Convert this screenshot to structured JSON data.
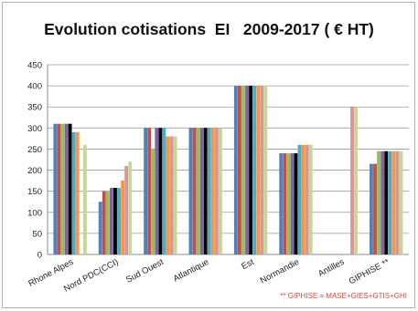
{
  "chart_data": {
    "type": "bar",
    "title": "Evolution cotisations  EI   2009-2017 ( € HT)",
    "footnote": "** GIPHISE = MASE+GIES+GTIS+GHI",
    "xlabel": "",
    "ylabel": "",
    "ylim": [
      0,
      450
    ],
    "ytick_labels": [
      "0",
      "50",
      "100",
      "150",
      "200",
      "250",
      "300",
      "350",
      "400",
      "450"
    ],
    "grid": true,
    "legend": "none",
    "categories": [
      "Rhone Alpes",
      "Nord PDC(CCI)",
      "Sud Ouest",
      "Atlantique",
      "Est",
      "Normandie",
      "Antilles",
      "GIPHISE **"
    ],
    "series_colors": [
      "#4f81bd",
      "#c0504d",
      "#9bbb59",
      "#8064a2",
      "#000000",
      "#4bacc6",
      "#f79646",
      "#d99694",
      "#c3d69b"
    ],
    "values_by_category": [
      [
        310,
        310,
        310,
        310,
        310,
        290,
        290,
        null,
        260
      ],
      [
        125,
        150,
        150,
        158,
        158,
        158,
        175,
        210,
        220
      ],
      [
        300,
        300,
        250,
        300,
        300,
        300,
        280,
        280,
        280
      ],
      [
        300,
        300,
        300,
        300,
        300,
        300,
        300,
        300,
        300
      ],
      [
        400,
        400,
        400,
        400,
        400,
        400,
        400,
        400,
        400
      ],
      [
        240,
        240,
        240,
        240,
        240,
        260,
        260,
        260,
        260
      ],
      [
        null,
        null,
        null,
        null,
        null,
        null,
        null,
        350,
        350
      ],
      [
        215,
        215,
        245,
        245,
        245,
        245,
        245,
        245,
        245
      ]
    ]
  }
}
